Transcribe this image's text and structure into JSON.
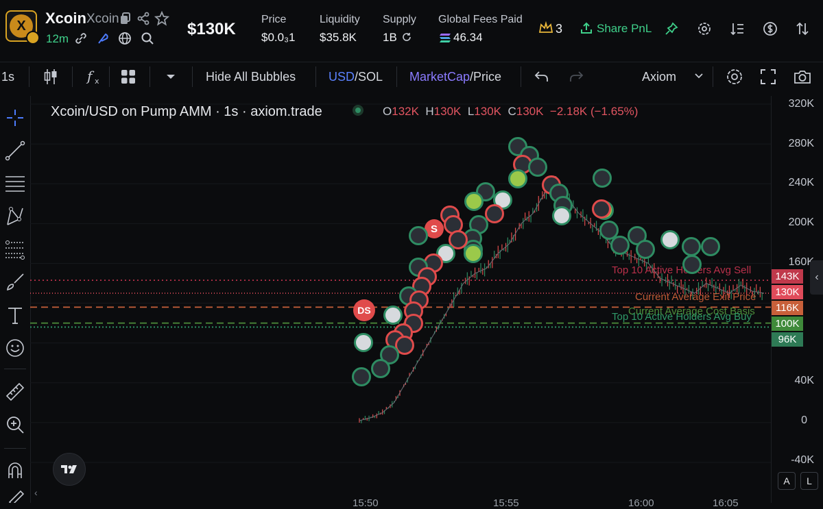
{
  "header": {
    "token_name": "Xcoin",
    "token_ticker": "Xcoin",
    "age": "12m",
    "market_cap": "$130K",
    "stats": [
      {
        "label": "Price",
        "value": "$0.0₃1"
      },
      {
        "label": "Liquidity",
        "value": "$35.8K"
      },
      {
        "label": "Supply",
        "value": "1B"
      },
      {
        "label": "Global Fees Paid",
        "value": "46.34"
      }
    ],
    "crown_count": "3",
    "share_label": "Share PnL"
  },
  "toolbar": {
    "interval": "1s",
    "hide_bubbles": "Hide All Bubbles",
    "currency_active": "USD",
    "currency_other": "/SOL",
    "mode_active": "MarketCap",
    "mode_other": "/Price",
    "source": "Axiom"
  },
  "chart": {
    "title": "Xcoin/USD on Pump AMM · 1s · axiom.trade",
    "ohlc": {
      "o_label": "O",
      "o": "132K",
      "h_label": "H",
      "h": "130K",
      "l_label": "L",
      "l": "130K",
      "c_label": "C",
      "c": "130K",
      "change": "−2.18K (−1.65%)"
    },
    "marker_s": "S",
    "marker_ds": "DS",
    "lines": {
      "avg_sell": "Top 10 Active Holders Avg Sell",
      "exit_price": "Current Average Exit Price",
      "cost_basis": "Current Average Cost Basis",
      "avg_buy": "Top 10 Active Holders Avg Buy"
    },
    "time_labels": [
      "15:50",
      "15:55",
      "16:00",
      "16:05"
    ]
  },
  "chart_data": {
    "type": "line",
    "title": "Xcoin/USD on Pump AMM · 1s · axiom.trade",
    "yticks": [
      "320K",
      "280K",
      "240K",
      "200K",
      "160K",
      "40K",
      "0",
      "-40K"
    ],
    "price_tags": [
      {
        "label": "143K",
        "color": "#c0394b"
      },
      {
        "label": "130K",
        "color": "#e04b5a"
      },
      {
        "label": "116K",
        "color": "#c8603a"
      },
      {
        "label": "100K",
        "color": "#3f8a3a"
      },
      {
        "label": "96K",
        "color": "#2e7a55"
      }
    ],
    "series": [
      {
        "values": [
          2,
          5,
          10,
          20,
          40,
          60,
          80,
          100,
          120,
          140,
          150,
          155,
          170,
          180,
          200,
          210,
          230,
          240,
          225,
          210,
          200,
          190,
          175,
          170,
          165,
          160,
          145,
          140,
          135,
          130,
          140,
          135,
          130,
          138,
          132,
          130
        ]
      }
    ],
    "ylim": [
      -40,
      320
    ]
  },
  "axis_buttons": {
    "a": "A",
    "l": "L"
  },
  "colors": {
    "green": "#2e8c62",
    "red": "#e04b4b",
    "accent_blue": "#4d7cff",
    "purple": "#8b7bff"
  }
}
